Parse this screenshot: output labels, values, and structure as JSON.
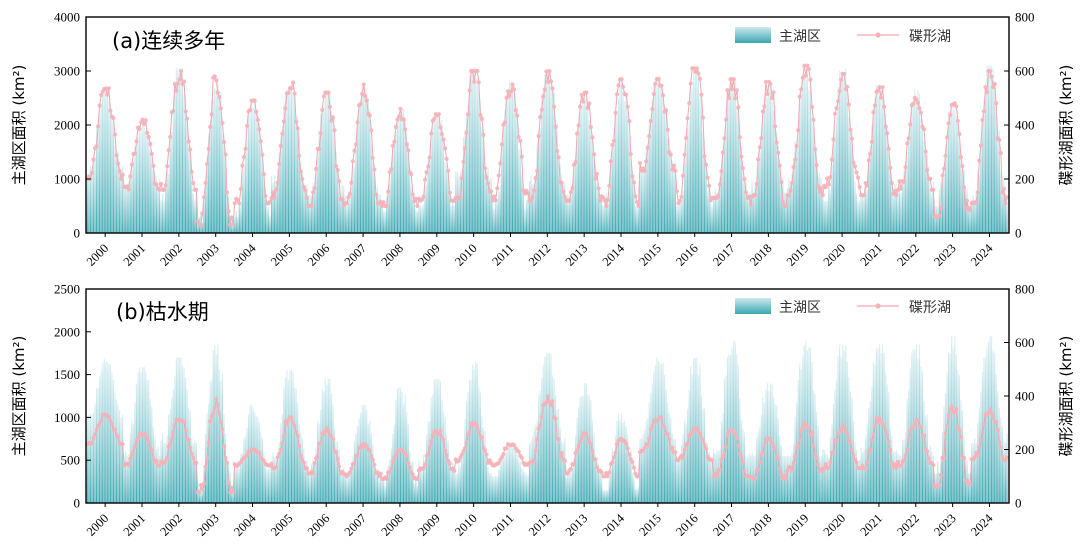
{
  "colors": {
    "bar_base": "#1f9aa6",
    "bar_top": "#d8eef2",
    "lake_line": "#f2a7ae",
    "lake_marker": "#f5b3b9",
    "axis": "#000000"
  },
  "chart_data": [
    {
      "type": "bar",
      "panel_title": "(a)连续多年",
      "ylabel_left": "主湖区面积 (km²)",
      "ylabel_right": "碟形湖面积 (km²)",
      "ylim_left": [
        0,
        4000
      ],
      "yticks_left": [
        "0",
        "1000",
        "2000",
        "3000",
        "4000"
      ],
      "ylim_right": [
        0,
        800
      ],
      "yticks_right": [
        "0",
        "200",
        "400",
        "600",
        "800"
      ],
      "x_years": [
        "2000",
        "2001",
        "2002",
        "2003",
        "2004",
        "2005",
        "2006",
        "2007",
        "2008",
        "2009",
        "2010",
        "2011",
        "2012",
        "2013",
        "2014",
        "2015",
        "2016",
        "2017",
        "2018",
        "2019",
        "2020",
        "2021",
        "2022",
        "2023",
        "2024"
      ],
      "legend": [
        "主湖区",
        "碟形湖"
      ],
      "legend_position": "top-right",
      "series": [
        {
          "name": "主湖区",
          "axis": "left",
          "annual_min": [
            1100,
            900,
            600,
            200,
            300,
            900,
            700,
            500,
            400,
            500,
            900,
            450,
            900,
            650,
            500,
            1200,
            500,
            700,
            750,
            800,
            600,
            700,
            750,
            500,
            600
          ],
          "annual_max": [
            2700,
            2000,
            3050,
            2900,
            2500,
            2800,
            2600,
            2700,
            2300,
            2200,
            3100,
            2800,
            3000,
            2600,
            2850,
            2900,
            3050,
            2850,
            2750,
            3050,
            3100,
            2800,
            2650,
            2400,
            3100
          ]
        },
        {
          "name": "碟形湖",
          "axis": "right",
          "annual_min": [
            200,
            160,
            160,
            30,
            110,
            130,
            100,
            110,
            100,
            120,
            130,
            120,
            120,
            120,
            100,
            230,
            110,
            130,
            100,
            140,
            170,
            140,
            160,
            60,
            110
          ],
          "annual_max": [
            540,
            420,
            600,
            580,
            490,
            560,
            520,
            550,
            460,
            440,
            600,
            550,
            600,
            520,
            570,
            570,
            610,
            570,
            560,
            620,
            590,
            540,
            520,
            480,
            600
          ]
        }
      ]
    },
    {
      "type": "bar",
      "panel_title": "(b)枯水期",
      "ylabel_left": "主湖区面积 (km²)",
      "ylabel_right": "碟形湖面积 (km²)",
      "ylim_left": [
        0,
        2500
      ],
      "yticks_left": [
        "0",
        "500",
        "1000",
        "1500",
        "2000",
        "2500"
      ],
      "ylim_right": [
        0,
        800
      ],
      "yticks_right": [
        "0",
        "200",
        "400",
        "600",
        "800"
      ],
      "x_years": [
        "2000",
        "2001",
        "2002",
        "2003",
        "2004",
        "2005",
        "2006",
        "2007",
        "2008",
        "2009",
        "2010",
        "2011",
        "2012",
        "2013",
        "2014",
        "2015",
        "2016",
        "2017",
        "2018",
        "2019",
        "2020",
        "2021",
        "2022",
        "2023",
        "2024"
      ],
      "legend": [
        "主湖区",
        "碟形湖"
      ],
      "legend_position": "top-right",
      "series": [
        {
          "name": "主湖区",
          "axis": "left",
          "annual_min": [
            1000,
            550,
            700,
            150,
            400,
            500,
            350,
            300,
            200,
            400,
            350,
            300,
            700,
            300,
            150,
            750,
            500,
            500,
            550,
            550,
            500,
            600,
            550,
            350,
            700
          ],
          "annual_max": [
            1700,
            1650,
            1700,
            1850,
            1150,
            1550,
            1450,
            1150,
            1350,
            1450,
            1650,
            700,
            1750,
            1400,
            1050,
            1700,
            1700,
            1900,
            1400,
            1900,
            1850,
            1900,
            1850,
            1950,
            1950
          ]
        },
        {
          "name": "碟形湖",
          "axis": "right",
          "annual_min": [
            220,
            140,
            150,
            40,
            140,
            130,
            110,
            100,
            90,
            120,
            150,
            140,
            150,
            110,
            100,
            190,
            160,
            100,
            90,
            120,
            130,
            130,
            140,
            60,
            160
          ],
          "annual_max": [
            330,
            260,
            320,
            390,
            200,
            320,
            280,
            220,
            200,
            270,
            300,
            220,
            400,
            260,
            240,
            320,
            280,
            270,
            240,
            300,
            290,
            320,
            310,
            360,
            350
          ]
        }
      ]
    }
  ]
}
